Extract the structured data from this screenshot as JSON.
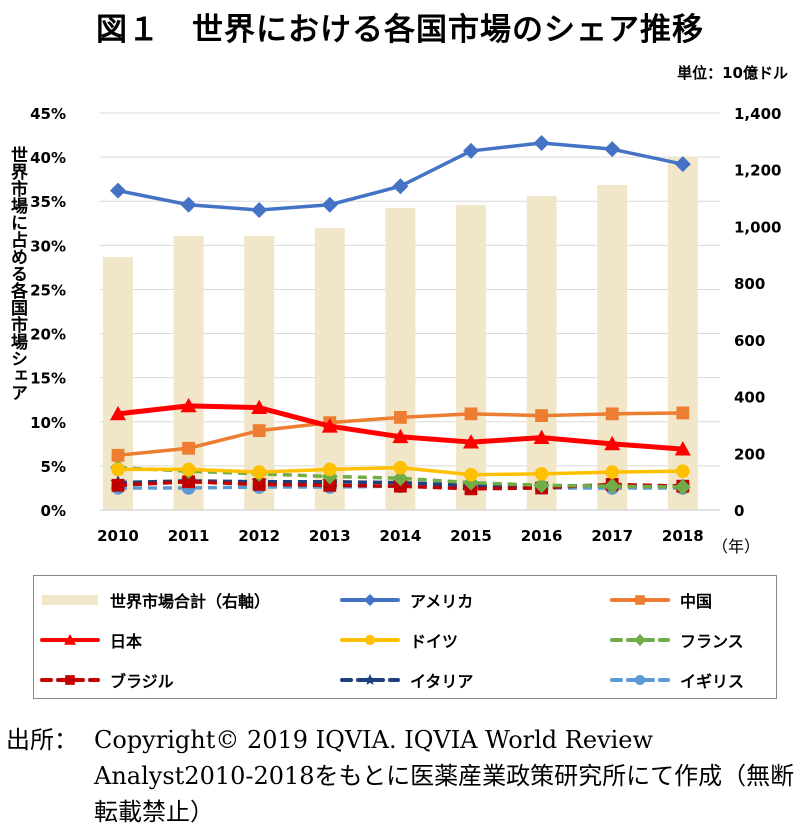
{
  "title": "図１　世界における各国市場のシェア推移",
  "unit": "単位：10億ドル",
  "chart_data": {
    "type": "bar+line",
    "title": "図１　世界における各国市場のシェア推移",
    "ylabel": "世界市場に占める各国市場シェア",
    "xlabel_suffix": "（年）",
    "categories": [
      "2010",
      "2011",
      "2012",
      "2013",
      "2014",
      "2015",
      "2016",
      "2017",
      "2018"
    ],
    "ylim_left": [
      0,
      45
    ],
    "ylim_right": [
      0,
      1400
    ],
    "left_ticks": [
      "0%",
      "5%",
      "10%",
      "15%",
      "20%",
      "25%",
      "30%",
      "35%",
      "40%",
      "45%"
    ],
    "right_ticks": [
      "0",
      "200",
      "400",
      "600",
      "800",
      "1,000",
      "1,200",
      "1,400"
    ],
    "grid": true,
    "legend_position": "bottom",
    "bar_series": {
      "name": "世界市場合計（右軸）",
      "color": "#f2e6c9",
      "values": [
        892,
        966,
        966,
        994,
        1065,
        1075,
        1107,
        1146,
        1245
      ]
    },
    "line_series": [
      {
        "name": "アメリカ",
        "color": "#4472c4",
        "marker": "diamond",
        "dash": false,
        "values": [
          36.2,
          34.6,
          34.0,
          34.6,
          36.7,
          40.7,
          41.6,
          40.9,
          39.2
        ]
      },
      {
        "name": "中国",
        "color": "#ed7d31",
        "marker": "square",
        "dash": false,
        "values": [
          6.2,
          7.0,
          9.0,
          9.9,
          10.5,
          10.9,
          10.7,
          10.9,
          11.0
        ]
      },
      {
        "name": "日本",
        "color": "#ff0000",
        "marker": "triangle",
        "dash": false,
        "values": [
          10.9,
          11.8,
          11.6,
          9.5,
          8.3,
          7.7,
          8.2,
          7.5,
          6.9
        ]
      },
      {
        "name": "ドイツ",
        "color": "#ffc000",
        "marker": "circle",
        "dash": false,
        "values": [
          4.6,
          4.6,
          4.3,
          4.6,
          4.8,
          4.0,
          4.1,
          4.3,
          4.4
        ]
      },
      {
        "name": "フランス",
        "color": "#70ad47",
        "marker": "diamond",
        "dash": true,
        "values": [
          4.8,
          4.4,
          4.1,
          3.8,
          3.6,
          3.1,
          2.8,
          2.7,
          2.6
        ]
      },
      {
        "name": "ブラジル",
        "color": "#c00000",
        "marker": "square",
        "dash": true,
        "values": [
          2.8,
          3.2,
          2.9,
          2.8,
          2.7,
          2.4,
          2.5,
          2.9,
          2.7
        ]
      },
      {
        "name": "イタリア",
        "color": "#1f3f7a",
        "marker": "star",
        "dash": true,
        "values": [
          3.1,
          3.3,
          3.2,
          3.2,
          3.1,
          2.8,
          2.7,
          2.8,
          2.7
        ]
      },
      {
        "name": "イギリス",
        "color": "#5b9bd5",
        "marker": "circle",
        "dash": true,
        "values": [
          2.5,
          2.5,
          2.6,
          2.6,
          2.7,
          2.6,
          2.5,
          2.5,
          2.5
        ]
      }
    ]
  },
  "source": {
    "label": "出所：",
    "text": "Copyright© 2019 IQVIA. IQVIA World Review Analyst2010-2018をもとに医薬産業政策研究所にて作成（無断転載禁止）"
  }
}
